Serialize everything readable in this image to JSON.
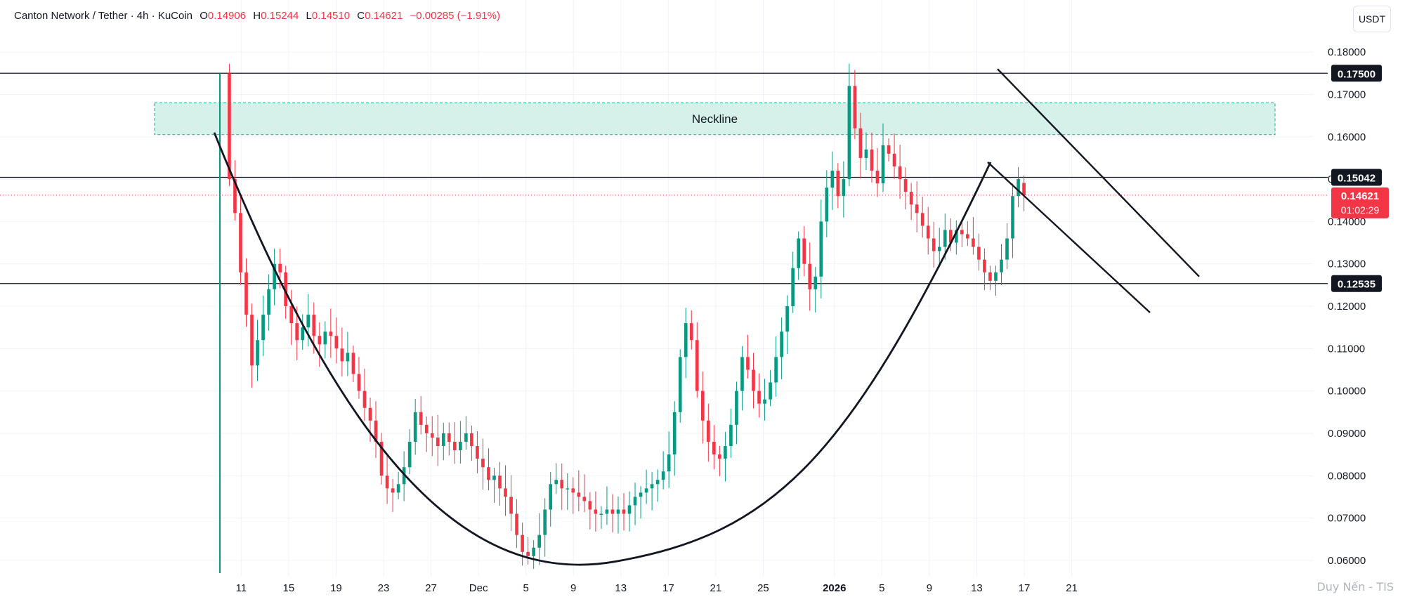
{
  "header": {
    "symbol": "Canton Network / Tether · 4h · KuCoin",
    "open_label": "O",
    "open": "0.14906",
    "high_label": "H",
    "high": "0.15244",
    "low_label": "L",
    "low": "0.14510",
    "close_label": "C",
    "close": "0.14621",
    "change": "−0.00285 (−1.91%)"
  },
  "currency": "USDT",
  "watermark": "Duy Nến - TIS",
  "colors": {
    "up": "#089981",
    "down": "#f23645",
    "zone_fill": "#cfeee6",
    "zone_border": "#26a69a",
    "line": "#131722"
  },
  "chart_data": {
    "type": "candlestick",
    "title": "",
    "xlabel": "",
    "ylabel": "",
    "ylim": [
      0.056,
      0.184
    ],
    "grid": true,
    "yticks": [
      "0.18000",
      "0.17000",
      "0.16000",
      "0.15000",
      "0.14000",
      "0.13000",
      "0.12000",
      "0.11000",
      "0.10000",
      "0.09000",
      "0.08000",
      "0.07000",
      "0.06000"
    ],
    "ytick_values": [
      0.18,
      0.17,
      0.16,
      0.15,
      0.14,
      0.13,
      0.12,
      0.11,
      0.1,
      0.09,
      0.08,
      0.07,
      0.06
    ],
    "xrange": [
      0,
      180
    ],
    "xticks": [
      {
        "label": "11",
        "x": 3
      },
      {
        "label": "15",
        "x": 11
      },
      {
        "label": "19",
        "x": 19
      },
      {
        "label": "23",
        "x": 27
      },
      {
        "label": "27",
        "x": 35
      },
      {
        "label": "Dec",
        "x": 43
      },
      {
        "label": "5",
        "x": 51
      },
      {
        "label": "9",
        "x": 59
      },
      {
        "label": "13",
        "x": 67
      },
      {
        "label": "17",
        "x": 75
      },
      {
        "label": "21",
        "x": 83
      },
      {
        "label": "25",
        "x": 91
      },
      {
        "label": "2026",
        "x": 103
      },
      {
        "label": "5",
        "x": 111
      },
      {
        "label": "9",
        "x": 119
      },
      {
        "label": "13",
        "x": 127
      },
      {
        "label": "17",
        "x": 135
      },
      {
        "label": "21",
        "x": 143
      }
    ],
    "candles_close": [
      0.15,
      0.142,
      0.128,
      0.118,
      0.106,
      0.112,
      0.118,
      0.124,
      0.13,
      0.128,
      0.12,
      0.116,
      0.112,
      0.115,
      0.118,
      0.113,
      0.111,
      0.114,
      0.113,
      0.11,
      0.107,
      0.109,
      0.104,
      0.1,
      0.096,
      0.093,
      0.088,
      0.08,
      0.077,
      0.076,
      0.078,
      0.082,
      0.088,
      0.095,
      0.092,
      0.09,
      0.089,
      0.087,
      0.09,
      0.088,
      0.086,
      0.088,
      0.09,
      0.087,
      0.084,
      0.082,
      0.079,
      0.08,
      0.077,
      0.075,
      0.071,
      0.066,
      0.062,
      0.061,
      0.063,
      0.066,
      0.072,
      0.078,
      0.079,
      0.077,
      0.077,
      0.076,
      0.075,
      0.074,
      0.072,
      0.071,
      0.071,
      0.072,
      0.071,
      0.072,
      0.071,
      0.073,
      0.075,
      0.076,
      0.077,
      0.078,
      0.079,
      0.081,
      0.085,
      0.095,
      0.108,
      0.116,
      0.112,
      0.1,
      0.093,
      0.088,
      0.085,
      0.084,
      0.087,
      0.092,
      0.1,
      0.108,
      0.105,
      0.1,
      0.097,
      0.098,
      0.102,
      0.108,
      0.114,
      0.12,
      0.129,
      0.136,
      0.13,
      0.124,
      0.127,
      0.14,
      0.148,
      0.152,
      0.146,
      0.15,
      0.172,
      0.162,
      0.155,
      0.157,
      0.152,
      0.149,
      0.158,
      0.156,
      0.153,
      0.15,
      0.147,
      0.144,
      0.142,
      0.139,
      0.136,
      0.133,
      0.134,
      0.138,
      0.135,
      0.138,
      0.137,
      0.136,
      0.134,
      0.131,
      0.128,
      0.126,
      0.128,
      0.131,
      0.136,
      0.146,
      0.15,
      0.1462
    ],
    "candles_open": [
      0.175,
      0.15,
      0.142,
      0.128,
      0.118,
      0.106,
      0.112,
      0.118,
      0.124,
      0.13,
      0.128,
      0.12,
      0.116,
      0.112,
      0.115,
      0.118,
      0.113,
      0.111,
      0.114,
      0.113,
      0.11,
      0.107,
      0.109,
      0.104,
      0.1,
      0.096,
      0.093,
      0.088,
      0.08,
      0.077,
      0.076,
      0.078,
      0.082,
      0.088,
      0.095,
      0.092,
      0.09,
      0.089,
      0.087,
      0.09,
      0.088,
      0.086,
      0.088,
      0.09,
      0.087,
      0.084,
      0.082,
      0.079,
      0.08,
      0.077,
      0.075,
      0.071,
      0.066,
      0.062,
      0.061,
      0.063,
      0.066,
      0.072,
      0.078,
      0.079,
      0.077,
      0.077,
      0.076,
      0.075,
      0.074,
      0.072,
      0.071,
      0.071,
      0.072,
      0.071,
      0.072,
      0.071,
      0.073,
      0.075,
      0.076,
      0.077,
      0.078,
      0.079,
      0.081,
      0.085,
      0.095,
      0.108,
      0.116,
      0.112,
      0.1,
      0.093,
      0.088,
      0.085,
      0.084,
      0.087,
      0.092,
      0.1,
      0.108,
      0.105,
      0.1,
      0.097,
      0.098,
      0.102,
      0.108,
      0.114,
      0.12,
      0.129,
      0.136,
      0.13,
      0.124,
      0.127,
      0.14,
      0.148,
      0.152,
      0.146,
      0.15,
      0.172,
      0.162,
      0.155,
      0.157,
      0.152,
      0.149,
      0.158,
      0.156,
      0.153,
      0.15,
      0.147,
      0.144,
      0.142,
      0.139,
      0.136,
      0.133,
      0.134,
      0.138,
      0.135,
      0.138,
      0.137,
      0.136,
      0.134,
      0.131,
      0.128,
      0.126,
      0.128,
      0.131,
      0.136,
      0.146,
      0.1491
    ],
    "first_candle_x": 1,
    "spike_candle": {
      "x": 1,
      "low": 0.057,
      "high": 0.175
    },
    "horizontal_levels": [
      {
        "value": 0.175,
        "label": "0.17500"
      },
      {
        "value": 0.15042,
        "label": "0.15042"
      },
      {
        "value": 0.12535,
        "label": "0.12535"
      }
    ],
    "current_price": {
      "value": 0.14621,
      "label": "0.14621",
      "countdown": "01:02:29"
    },
    "neckline_zone": {
      "label": "Neckline",
      "x_start": -8,
      "x_end": 147,
      "y_low": 0.1605,
      "y_high": 0.168
    },
    "cup_curve": {
      "x_start": 0,
      "y_start": 0.161,
      "x_bottom": 55,
      "y_bottom": 0.0597,
      "x_end": 108,
      "y_end": 0.154
    },
    "channel_upper": {
      "x1": 109,
      "y1": 0.176,
      "x2": 138,
      "y2": 0.127
    },
    "channel_lower": {
      "x1": 108,
      "y1": 0.154,
      "x2": 131,
      "y2": 0.1185
    }
  }
}
